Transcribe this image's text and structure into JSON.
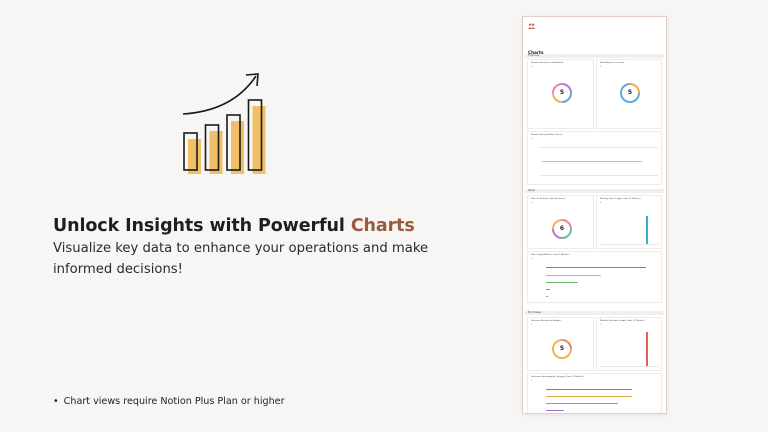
{
  "headline": {
    "prefix": "Unlock Insights with Powerful ",
    "accent": "Charts"
  },
  "subhead": "Visualize key data to enhance your operations and make informed decisions!",
  "footnote": {
    "bullet": "•",
    "text": "Chart views require  Notion Plus Plan or higher"
  },
  "colors": {
    "accent": "#9a5c3d",
    "bar_fill": "#f0c068",
    "outline": "#1a1a1a"
  },
  "illustration": {
    "icon": "bar-chart-growth-icon",
    "bar_levels": [
      0.37,
      0.45,
      0.55,
      0.7
    ]
  },
  "preview": {
    "title": "Charts",
    "subtitle": "Add Insights",
    "sections": [
      {
        "name": "Finances",
        "cards": [
          {
            "title": "Finance Record per Profitability",
            "count": "5",
            "type": "donut",
            "value": "5"
          },
          {
            "title": "Bank/Finance Overview",
            "count": "5",
            "type": "donut",
            "value": "5"
          },
          {
            "title": "Finance Money Balance Sheet",
            "count": "5",
            "type": "line"
          }
        ]
      },
      {
        "name": "Sales",
        "cards": [
          {
            "title": "Sales Lead Status (per Resource)",
            "count": "6",
            "type": "donut",
            "value": "6"
          },
          {
            "title": "Monthly Sales Ledger (Last 12 Months)",
            "count": "6",
            "type": "column"
          },
          {
            "title": "Sales Target/Achieve (Last 3 Months)",
            "count": "6",
            "type": "bars"
          }
        ]
      },
      {
        "name": "Purchases",
        "cards": [
          {
            "title": "Purchase Records by Budget",
            "count": "5",
            "type": "donut",
            "value": "5"
          },
          {
            "title": "Monthly Purchase Ledger (Last 12 Months)",
            "count": "5",
            "type": "column"
          },
          {
            "title": "Purchases Spending by Category (Last 12 Months)",
            "count": "5",
            "type": "bars"
          }
        ]
      }
    ]
  }
}
